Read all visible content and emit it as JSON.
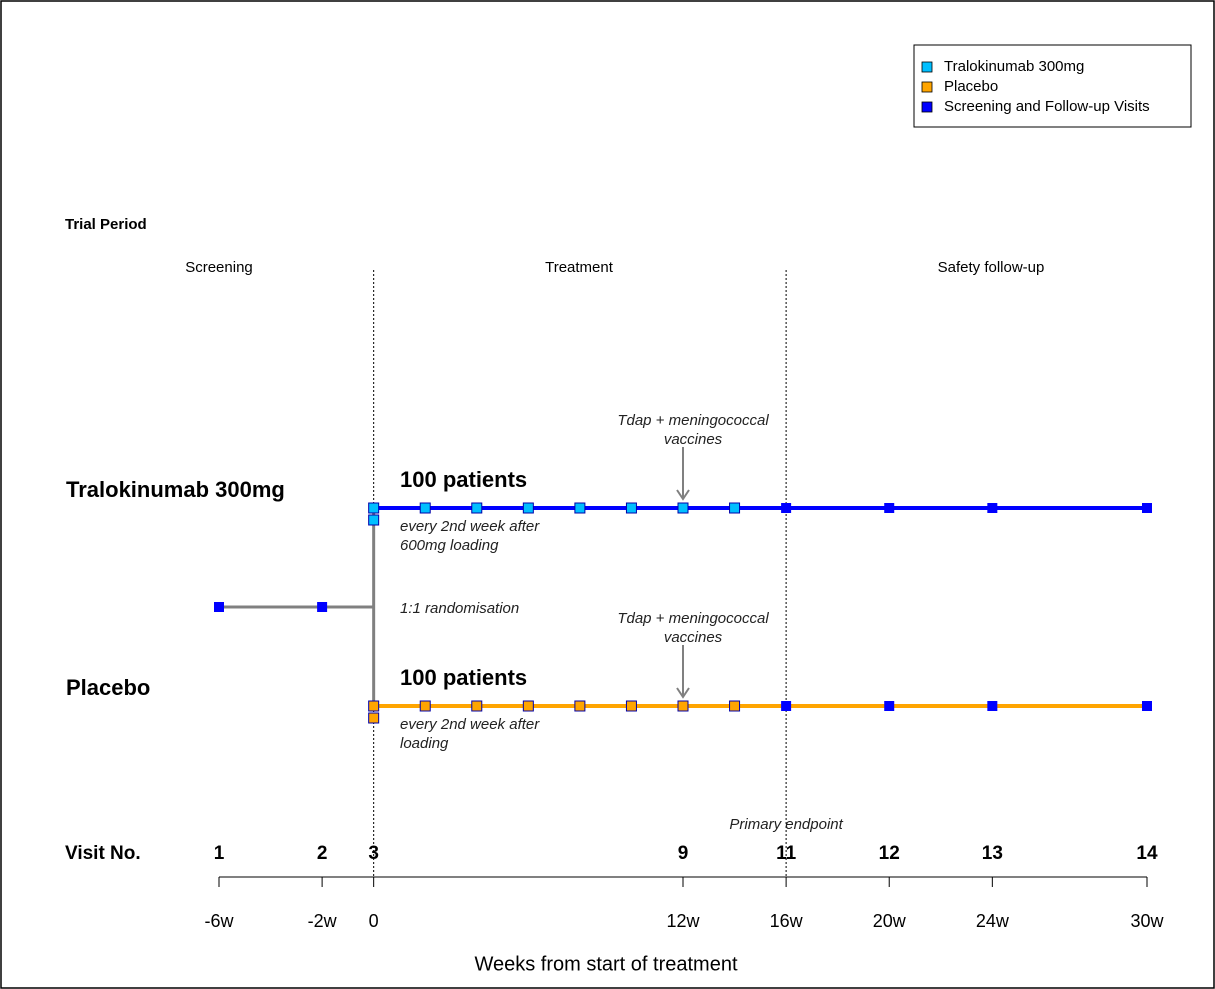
{
  "trial_period_label": "Trial Period",
  "periods": [
    "Screening",
    "Treatment",
    "Safety follow-up"
  ],
  "period_boundary_weeks": [
    0,
    16
  ],
  "legend": [
    {
      "label": "Tralokinumab 300mg",
      "color": "#00bfff"
    },
    {
      "label": "Placebo",
      "color": "#ffa500"
    },
    {
      "label": "Screening and Follow-up Visits",
      "color": "#0000ff"
    }
  ],
  "screening_weeks": [
    -6,
    -2
  ],
  "randomisation_label": "1:1 randomisation",
  "arms": [
    {
      "name": "Tralokinumab 300mg",
      "line_color": "#0000ff",
      "marker_color": "#00bfff",
      "patients": "100 patients",
      "dosing_note": [
        "every 2nd week after",
        "600mg loading"
      ],
      "loading_week": 0,
      "dose_weeks": [
        0,
        2,
        4,
        6,
        8,
        10,
        12,
        14
      ],
      "followup_weeks": [
        16,
        20,
        24,
        30
      ],
      "vaccine_note": [
        "Tdap + meningococcal",
        "vaccines"
      ],
      "vaccine_week": 12
    },
    {
      "name": "Placebo",
      "line_color": "#ffa500",
      "marker_color": "#ffa500",
      "patients": "100 patients",
      "dosing_note": [
        "every 2nd week after",
        "loading"
      ],
      "loading_week": 0,
      "dose_weeks": [
        0,
        2,
        4,
        6,
        8,
        10,
        12,
        14
      ],
      "followup_weeks": [
        16,
        20,
        24,
        30
      ],
      "vaccine_note": [
        "Tdap + meningococcal",
        "vaccines"
      ],
      "vaccine_week": 12
    }
  ],
  "followup_color": "#0000ff",
  "primary_endpoint": {
    "label": "Primary endpoint",
    "week": 16
  },
  "visit_axis": {
    "label": "Visit No.",
    "visits": [
      {
        "number": 1,
        "week": -6
      },
      {
        "number": 2,
        "week": -2
      },
      {
        "number": 3,
        "week": 0
      },
      {
        "number": 9,
        "week": 12
      },
      {
        "number": 11,
        "week": 16
      },
      {
        "number": 12,
        "week": 20
      },
      {
        "number": 13,
        "week": 24
      },
      {
        "number": 14,
        "week": 30
      }
    ]
  },
  "x_axis": {
    "label": "Weeks from start of treatment",
    "xlim": [
      -6,
      30
    ],
    "ticks": [
      {
        "value": -6,
        "label": "-6w"
      },
      {
        "value": -2,
        "label": "-2w"
      },
      0,
      {
        "value": 12,
        "label": "12w"
      },
      {
        "value": 16,
        "label": "16w"
      },
      {
        "value": 20,
        "label": "20w"
      },
      {
        "value": 24,
        "label": "24w"
      },
      {
        "value": 30,
        "label": "30w"
      }
    ]
  }
}
